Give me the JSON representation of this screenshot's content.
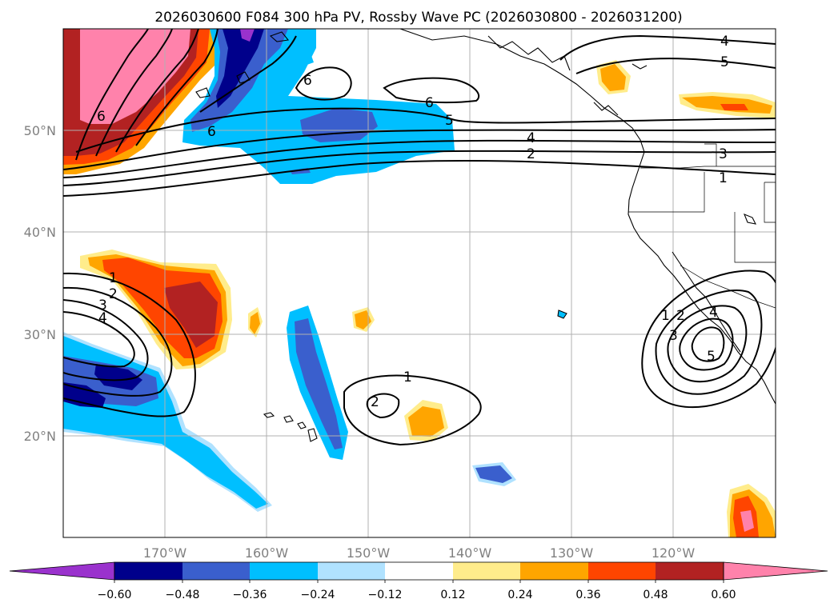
{
  "title": "2026030600 F084 300 hPa PV, Rossby Wave PC (2026030800 - 2026031200)",
  "longitude_labels": [
    "170°W",
    "160°W",
    "150°W",
    "140°W",
    "130°W",
    "120°W"
  ],
  "latitude_labels": [
    "50°N",
    "40°N",
    "30°N",
    "20°N"
  ],
  "colorbar": {
    "tick_labels": [
      "−0.60",
      "−0.48",
      "−0.36",
      "−0.24",
      "−0.12",
      "0.12",
      "0.24",
      "0.36",
      "0.48",
      "0.60"
    ],
    "colors": [
      "#9a32cd",
      "#00008b",
      "#3a5fcd",
      "#00bfff",
      "#b0e2ff",
      "#ffffff",
      "#ffec8b",
      "#ffa500",
      "#ff4500",
      "#b22222",
      "#ff82ab"
    ]
  },
  "contour_labels": {
    "nw_6a": "6",
    "nw_6b": "6",
    "n_6": "6",
    "jet_5": "5",
    "jet_4": "4",
    "jet_2": "2",
    "ne_4": "4",
    "ne_5": "5",
    "e_3": "3",
    "e_1": "1",
    "w_1": "1",
    "w_2": "2",
    "w_3": "3",
    "w_4": "4",
    "c_1": "1",
    "c_2": "2",
    "sw_1": "1",
    "sw_2": "2",
    "sw_3": "3",
    "sw_4": "4",
    "sw_5": "5"
  }
}
